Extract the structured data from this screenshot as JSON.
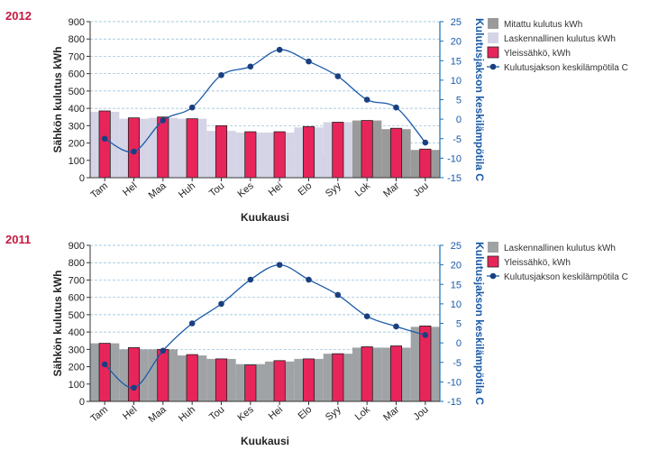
{
  "chart_data": [
    {
      "type": "bar",
      "year": "2012",
      "categories": [
        "Tam",
        "Hel",
        "Maa",
        "Huh",
        "Tou",
        "Kes",
        "Hei",
        "Elo",
        "Syy",
        "Lok",
        "Mar",
        "Jou"
      ],
      "xlabel": "Kuukausi",
      "ylabel": "Sähkön kulutus kWh",
      "y2label": "Kulutusjakson keskilämpötila C",
      "ylim": [
        0,
        900
      ],
      "y2lim": [
        -15,
        25
      ],
      "yticks": [
        0,
        100,
        200,
        300,
        400,
        500,
        600,
        700,
        800,
        900
      ],
      "y2ticks": [
        -15,
        -10,
        -5,
        0,
        5,
        10,
        15,
        20,
        25
      ],
      "grid": true,
      "legend": "right",
      "series": [
        {
          "name": "Mitattu kulutus kWh",
          "kind": "bar-background",
          "color": "#9a9a9a",
          "values": [
            null,
            null,
            null,
            null,
            null,
            null,
            null,
            null,
            120,
            330,
            280,
            160
          ]
        },
        {
          "name": "Laskennallinen kulutus kWh",
          "kind": "bar-background",
          "color": "#d4d4e6",
          "values": [
            380,
            340,
            345,
            340,
            270,
            260,
            260,
            290,
            320,
            null,
            null,
            null
          ]
        },
        {
          "name": "Yleissähkö, kWh",
          "kind": "bar",
          "color": "#e8255a",
          "values": [
            385,
            345,
            350,
            340,
            300,
            265,
            265,
            295,
            320,
            330,
            285,
            165
          ]
        },
        {
          "name": "Kulutusjakson keskilämpötila C",
          "kind": "line",
          "axis": "right",
          "color": "#1a5aa8",
          "values": [
            -5,
            -8.3,
            -0.3,
            3,
            11.3,
            13.5,
            17.8,
            14.8,
            11,
            5,
            3,
            -6
          ]
        }
      ]
    },
    {
      "type": "bar",
      "year": "2011",
      "categories": [
        "Tam",
        "Hel",
        "Maa",
        "Huh",
        "Tou",
        "Kes",
        "Hei",
        "Elo",
        "Syy",
        "Lok",
        "Mar",
        "Jou"
      ],
      "xlabel": "Kuukausi",
      "ylabel": "Sähkön kulutus kWh",
      "y2label": "Kulutusjakson keskilämpötila C",
      "ylim": [
        0,
        900
      ],
      "y2lim": [
        -15,
        25
      ],
      "yticks": [
        0,
        100,
        200,
        300,
        400,
        500,
        600,
        700,
        800,
        900
      ],
      "y2ticks": [
        -15,
        -10,
        -5,
        0,
        5,
        10,
        15,
        20,
        25
      ],
      "grid": true,
      "legend": "right",
      "series": [
        {
          "name": "Laskennallinen kulutus kWh",
          "kind": "bar-background",
          "color": "#a0a3a6",
          "values": [
            335,
            300,
            300,
            265,
            245,
            215,
            230,
            245,
            275,
            310,
            310,
            430
          ]
        },
        {
          "name": "Yleissähkö, kWh",
          "kind": "bar",
          "color": "#e8255a",
          "values": [
            335,
            310,
            300,
            270,
            245,
            210,
            235,
            245,
            275,
            315,
            320,
            435
          ]
        },
        {
          "name": "Kulutusjakson keskilämpötila C",
          "kind": "line",
          "axis": "right",
          "color": "#1a5aa8",
          "values": [
            -5.5,
            -11.5,
            -2,
            5,
            10,
            16.2,
            20,
            16.2,
            12.3,
            6.8,
            4.2,
            2
          ]
        }
      ]
    }
  ]
}
